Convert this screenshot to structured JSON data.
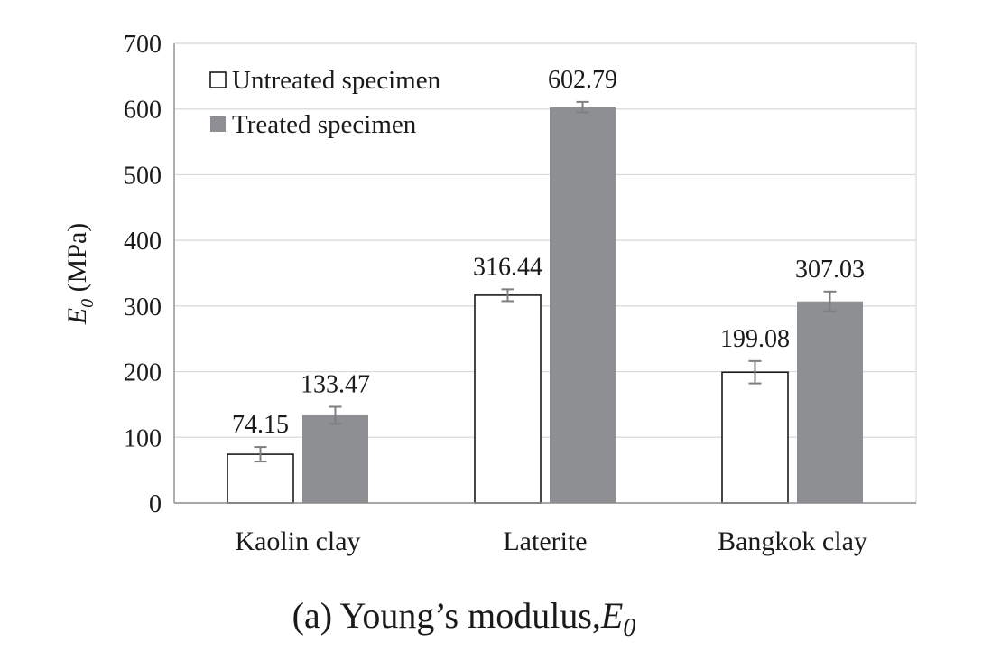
{
  "chart_data": {
    "type": "bar",
    "caption_prefix": "(a) Young’s modulus,",
    "caption_symbol": "E",
    "caption_subscript": "0",
    "ylabel_symbol": "E",
    "ylabel_subscript": "0",
    "ylabel_unit": " (MPa)",
    "categories": [
      "Kaolin clay",
      "Laterite",
      "Bangkok clay"
    ],
    "series": [
      {
        "name": "Untreated specimen",
        "values": [
          74.15,
          316.44,
          199.08
        ],
        "errors": [
          11,
          9,
          17
        ],
        "labels": [
          "74.15",
          "316.44",
          "199.08"
        ],
        "fill": "#ffffff",
        "stroke": "#1a1a1a"
      },
      {
        "name": "Treated specimen",
        "values": [
          133.47,
          602.79,
          307.03
        ],
        "errors": [
          13,
          8,
          15
        ],
        "labels": [
          "133.47",
          "602.79",
          "307.03"
        ],
        "fill": "#8e8f92",
        "stroke": "#8e8f92"
      }
    ],
    "ylim": [
      0,
      700
    ],
    "yticks": [
      0,
      100,
      200,
      300,
      400,
      500,
      600,
      700
    ],
    "ytick_labels": [
      "0",
      "100",
      "200",
      "300",
      "400",
      "500",
      "600",
      "700"
    ],
    "grid": true,
    "legend_position": "top-left",
    "colors": {
      "gridline": "#d9d9d9",
      "axis": "#8c8c8c",
      "errorbar": "#7f7f7f"
    }
  }
}
